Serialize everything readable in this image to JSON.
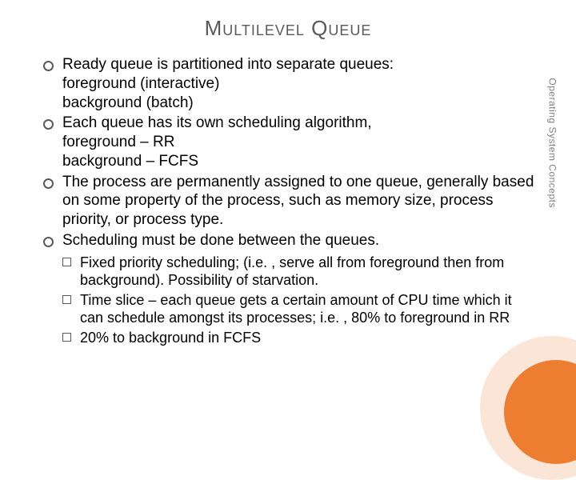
{
  "title": "Multilevel Queue",
  "bullets": [
    {
      "lines": [
        "Ready queue is partitioned into separate queues:",
        "foreground (interactive)",
        "background (batch)"
      ]
    },
    {
      "lines": [
        "Each queue has its own scheduling algorithm,",
        "foreground – RR",
        "background – FCFS"
      ]
    },
    {
      "lines": [
        "The process are permanently assigned to one queue, generally based on some property of the process, such as memory size, process priority, or process type."
      ]
    },
    {
      "lines": [
        "Scheduling must be done between the queues."
      ]
    }
  ],
  "sub_bullets": [
    "Fixed priority scheduling; (i.e. , serve all from foreground then from background).  Possibility of starvation.",
    "Time slice – each queue gets a certain amount of CPU time which it can schedule amongst its processes; i.e. , 80% to foreground in RR",
    "20% to background in FCFS"
  ],
  "side_label": "Operating System Concepts",
  "colors": {
    "title_color": "#595959",
    "text_color": "#000000",
    "circle_outer": "#fbe5d6",
    "circle_inner": "#ed7d31",
    "side_label_color": "#808080"
  }
}
